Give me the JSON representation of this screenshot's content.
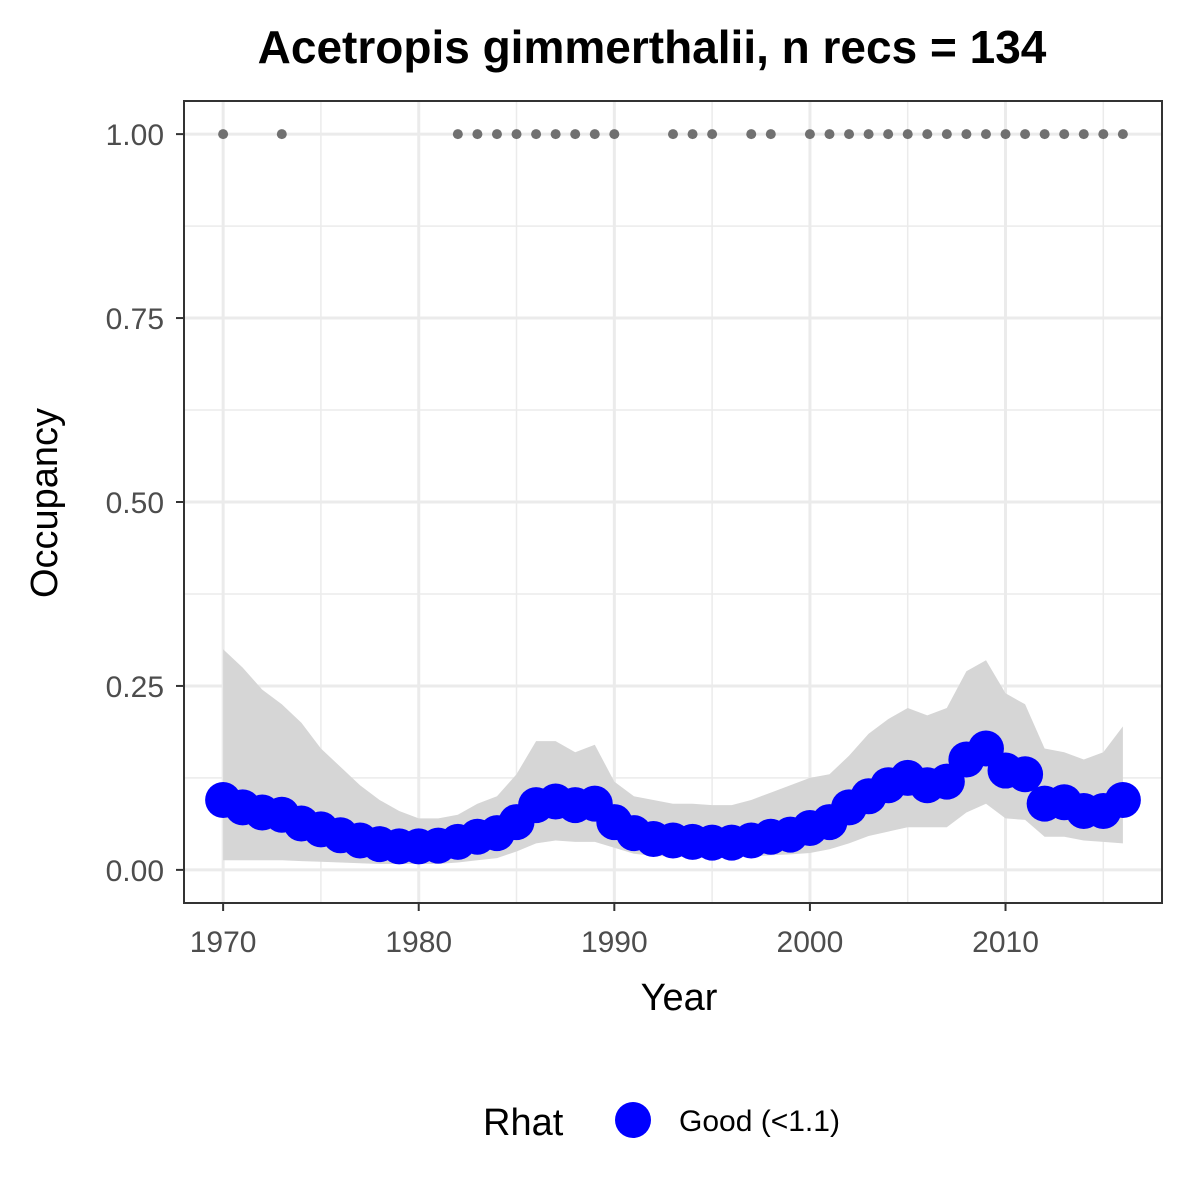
{
  "chart_data": {
    "type": "line",
    "title": "Acetropis gimmerthalii, n recs = 134",
    "xlabel": "Year",
    "ylabel": "Occupancy",
    "xlim": [
      1968,
      2018
    ],
    "ylim": [
      -0.045,
      1.045
    ],
    "x_ticks": [
      1970,
      1980,
      1990,
      2000,
      2010
    ],
    "x_tick_labels": [
      "1970",
      "1980",
      "1990",
      "2000",
      "2010"
    ],
    "y_ticks": [
      0,
      0.25,
      0.5,
      0.75,
      1
    ],
    "y_tick_labels": [
      "0.00",
      "0.25",
      "0.50",
      "0.75",
      "1.00"
    ],
    "x_minor_ticks": [
      1975,
      1985,
      1995,
      2005,
      2015
    ],
    "y_minor_ticks": [
      0.125,
      0.375,
      0.625,
      0.875
    ],
    "grid": true,
    "legend_position": "bottom",
    "legend": {
      "title": "Rhat",
      "entries": [
        {
          "label": "Good (<1.1)",
          "color": "#0000ff"
        }
      ]
    },
    "colors": {
      "estimate": "#0000ff",
      "interval": "#d6d6d6",
      "records": "#707070",
      "grid": "#ebebeb",
      "panel_border": "#333333"
    },
    "series": [
      {
        "name": "Good (<1.1)",
        "x": [
          1970,
          1971,
          1972,
          1973,
          1974,
          1975,
          1976,
          1977,
          1978,
          1979,
          1980,
          1981,
          1982,
          1983,
          1984,
          1985,
          1986,
          1987,
          1988,
          1989,
          1990,
          1991,
          1992,
          1993,
          1994,
          1995,
          1996,
          1997,
          1998,
          1999,
          2000,
          2001,
          2002,
          2003,
          2004,
          2005,
          2006,
          2007,
          2008,
          2009,
          2010,
          2011,
          2012,
          2013,
          2014,
          2015,
          2016
        ],
        "values": [
          0.095,
          0.085,
          0.078,
          0.075,
          0.063,
          0.055,
          0.047,
          0.04,
          0.035,
          0.032,
          0.032,
          0.033,
          0.038,
          0.045,
          0.05,
          0.065,
          0.088,
          0.093,
          0.088,
          0.09,
          0.065,
          0.05,
          0.042,
          0.04,
          0.038,
          0.037,
          0.037,
          0.04,
          0.045,
          0.048,
          0.057,
          0.065,
          0.085,
          0.1,
          0.115,
          0.125,
          0.115,
          0.12,
          0.15,
          0.165,
          0.135,
          0.13,
          0.09,
          0.092,
          0.08,
          0.08,
          0.095
        ],
        "lower": [
          0.013,
          0.013,
          0.013,
          0.013,
          0.012,
          0.011,
          0.01,
          0.009,
          0.008,
          0.008,
          0.008,
          0.008,
          0.01,
          0.013,
          0.016,
          0.025,
          0.036,
          0.04,
          0.038,
          0.038,
          0.03,
          0.022,
          0.019,
          0.018,
          0.017,
          0.017,
          0.017,
          0.018,
          0.02,
          0.021,
          0.023,
          0.028,
          0.036,
          0.046,
          0.052,
          0.058,
          0.058,
          0.058,
          0.078,
          0.09,
          0.07,
          0.068,
          0.045,
          0.045,
          0.04,
          0.038,
          0.036
        ],
        "upper": [
          0.3,
          0.275,
          0.245,
          0.225,
          0.2,
          0.165,
          0.14,
          0.115,
          0.095,
          0.08,
          0.07,
          0.07,
          0.075,
          0.09,
          0.1,
          0.13,
          0.175,
          0.175,
          0.16,
          0.17,
          0.12,
          0.1,
          0.095,
          0.09,
          0.09,
          0.088,
          0.088,
          0.095,
          0.105,
          0.115,
          0.125,
          0.13,
          0.155,
          0.185,
          0.205,
          0.22,
          0.21,
          0.22,
          0.27,
          0.285,
          0.24,
          0.225,
          0.165,
          0.16,
          0.15,
          0.16,
          0.195
        ]
      }
    ],
    "records": {
      "y": 1,
      "x": [
        1970,
        1973,
        1982,
        1983,
        1984,
        1985,
        1986,
        1987,
        1988,
        1989,
        1990,
        1993,
        1994,
        1995,
        1997,
        1998,
        2000,
        2001,
        2002,
        2003,
        2004,
        2005,
        2006,
        2007,
        2008,
        2009,
        2010,
        2011,
        2012,
        2013,
        2014,
        2015,
        2016
      ]
    }
  }
}
